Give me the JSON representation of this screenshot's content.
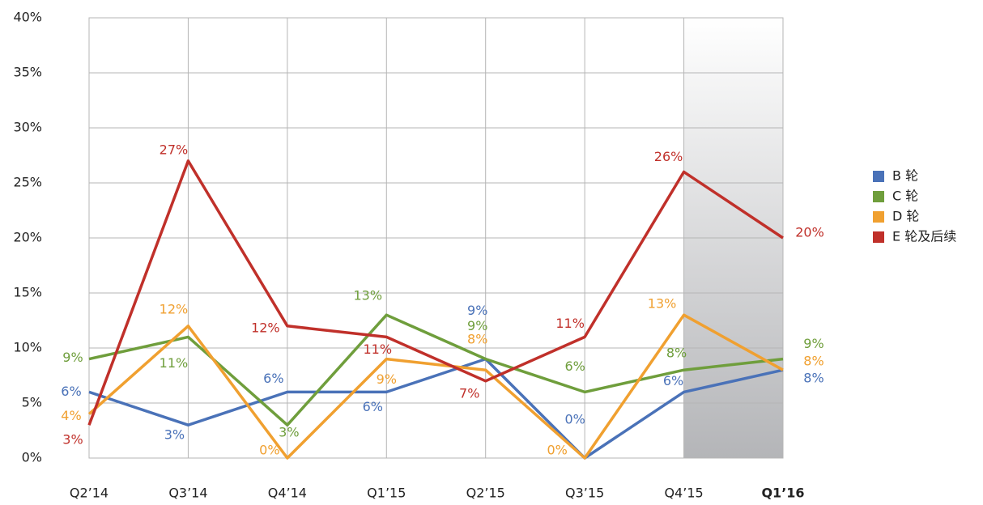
{
  "chart_data": {
    "type": "line",
    "categories": [
      "Q2’14",
      "Q3’14",
      "Q4’14",
      "Q1’15",
      "Q2’15",
      "Q3’15",
      "Q4’15",
      "Q1’16"
    ],
    "ylim": [
      0,
      40
    ],
    "yticks": [
      {
        "value": 0,
        "label": "0%"
      },
      {
        "value": 5,
        "label": "5%"
      },
      {
        "value": 10,
        "label": "10%"
      },
      {
        "value": 15,
        "label": "15%"
      },
      {
        "value": 20,
        "label": "20%"
      },
      {
        "value": 25,
        "label": "25%"
      },
      {
        "value": 30,
        "label": "30%"
      },
      {
        "value": 35,
        "label": "35%"
      },
      {
        "value": 40,
        "label": "40%"
      }
    ],
    "grid": true,
    "legend": "right",
    "series": [
      {
        "name": "B 轮",
        "color": "#4a72b8",
        "values": [
          6,
          3,
          6,
          6,
          9,
          0,
          6,
          8
        ],
        "value_labels": [
          "6%",
          "3%",
          "6%",
          "6%",
          "9%",
          "0%",
          "6%",
          "8%"
        ]
      },
      {
        "name": "C 轮",
        "color": "#6f9e3c",
        "values": [
          9,
          11,
          3,
          13,
          9,
          6,
          8,
          9
        ],
        "value_labels": [
          "9%",
          "11%",
          "3%",
          "13%",
          "9%",
          "6%",
          "8%",
          "9%"
        ]
      },
      {
        "name": "D 轮",
        "color": "#f0a030",
        "values": [
          4,
          12,
          0,
          9,
          8,
          0,
          13,
          8
        ],
        "value_labels": [
          "4%",
          "12%",
          "0%",
          "9%",
          "8%",
          "0%",
          "13%",
          "8%"
        ]
      },
      {
        "name": "E 轮及后续",
        "color": "#c0302a",
        "values": [
          3,
          27,
          12,
          11,
          7,
          11,
          26,
          20
        ],
        "value_labels": [
          "3%",
          "27%",
          "12%",
          "11%",
          "7%",
          "11%",
          "26%",
          "20%"
        ]
      }
    ]
  }
}
